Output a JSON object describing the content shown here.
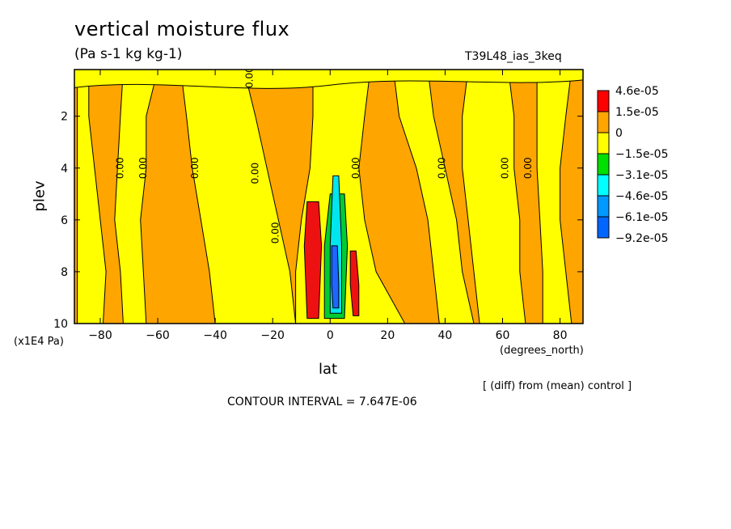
{
  "chart_data": {
    "type": "contour",
    "title": "vertical moisture flux",
    "units": "(Pa s-1 kg kg-1)",
    "run_label": "T39L48_ias_3keq",
    "xlabel": "lat",
    "x_units": "(degrees_north)",
    "ylabel": "plev",
    "y_units": "(x1E4 Pa)",
    "x_ticks": [
      -80,
      -60,
      -40,
      -20,
      0,
      20,
      40,
      60,
      80
    ],
    "y_ticks": [
      2,
      4,
      6,
      8,
      10
    ],
    "xlim": [
      -89,
      88
    ],
    "ylim": [
      10,
      0.2
    ],
    "contour_interval_label": "CONTOUR INTERVAL = 7.647E-06",
    "note": "[ (diff) from (mean) control ]",
    "contour_label": "0.00",
    "legend": {
      "levels": [
        "4.6e-05",
        "1.5e-05",
        "0",
        "−1.5e-05",
        "−3.1e-05",
        "−4.6e-05",
        "−6.1e-05",
        "−9.2e-05"
      ],
      "colors": [
        "#ff0000",
        "#ffa500",
        "#ffff00",
        "#00e000",
        "#00ffff",
        "#0099ff",
        "#0066ff",
        "#ffffff"
      ]
    },
    "region_colors": {
      "positive": "#ffa500",
      "near_zero": "#ffff00",
      "strong_positive": "#ee1111",
      "negative_green": "#00cc33",
      "negative_cyan": "#00e5ee",
      "negative_blue": "#1e66ff"
    }
  }
}
